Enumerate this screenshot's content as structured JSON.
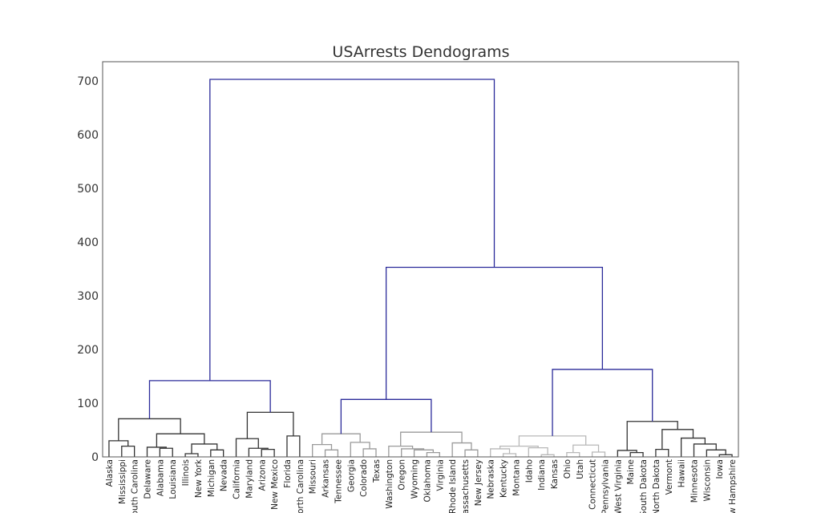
{
  "chart_data": {
    "type": "dendrogram",
    "title": "USArrests Dendograms",
    "xlabel": "",
    "ylabel": "",
    "ylim": [
      0,
      740
    ],
    "yticks": [
      0,
      100,
      200,
      300,
      400,
      500,
      600,
      700
    ],
    "grid": false,
    "legend": "none",
    "colors": {
      "root": "#2b2b9a",
      "cluster_1": "#333333",
      "cluster_2": "#9a9a9a",
      "cluster_3": "#b8b8b8",
      "cluster_4": "#333333",
      "frame": "#555555"
    },
    "leaves": [
      "Alaska",
      "Mississippi",
      "South Carolina",
      "Delaware",
      "Alabama",
      "Louisiana",
      "Illinois",
      "New York",
      "Michigan",
      "Nevada",
      "California",
      "Maryland",
      "Arizona",
      "New Mexico",
      "Florida",
      "North Carolina",
      "Missouri",
      "Arkansas",
      "Tennessee",
      "Georgia",
      "Colorado",
      "Texas",
      "Washington",
      "Oregon",
      "Wyoming",
      "Oklahoma",
      "Virginia",
      "Rhode Island",
      "Massachusetts",
      "New Jersey",
      "Nebraska",
      "Kentucky",
      "Montana",
      "Idaho",
      "Indiana",
      "Kansas",
      "Ohio",
      "Utah",
      "Connecticut",
      "Pennsylvania",
      "West Virginia",
      "Maine",
      "South Dakota",
      "North Dakota",
      "Vermont",
      "Hawaii",
      "Minnesota",
      "Wisconsin",
      "Iowa",
      "New Hampshire"
    ],
    "merges": [
      {
        "a": "L1",
        "b": "L2",
        "h": 20,
        "c": "cluster_1"
      },
      {
        "a": "L0",
        "b": "M0",
        "h": 30,
        "c": "cluster_1"
      },
      {
        "a": "L4",
        "b": "L5",
        "h": 16,
        "c": "cluster_1"
      },
      {
        "a": "L3",
        "b": "M2",
        "h": 18,
        "c": "cluster_1"
      },
      {
        "a": "L6",
        "b": "L7",
        "h": 6,
        "c": "cluster_1"
      },
      {
        "a": "L8",
        "b": "L9",
        "h": 13,
        "c": "cluster_1"
      },
      {
        "a": "M4",
        "b": "M5",
        "h": 24,
        "c": "cluster_1"
      },
      {
        "a": "M3",
        "b": "M6",
        "h": 43,
        "c": "cluster_1"
      },
      {
        "a": "M1",
        "b": "M7",
        "h": 71,
        "c": "cluster_1"
      },
      {
        "a": "L12",
        "b": "L13",
        "h": 14,
        "c": "cluster_1"
      },
      {
        "a": "L11",
        "b": "M9",
        "h": 16,
        "c": "cluster_1"
      },
      {
        "a": "L10",
        "b": "M10",
        "h": 34,
        "c": "cluster_1"
      },
      {
        "a": "L14",
        "b": "L15",
        "h": 39,
        "c": "cluster_1"
      },
      {
        "a": "M11",
        "b": "M12",
        "h": 83,
        "c": "cluster_1"
      },
      {
        "a": "M8",
        "b": "M13",
        "h": 142,
        "c": "root"
      },
      {
        "a": "L17",
        "b": "L18",
        "h": 13,
        "c": "cluster_2"
      },
      {
        "a": "L16",
        "b": "M15",
        "h": 23,
        "c": "cluster_2"
      },
      {
        "a": "L20",
        "b": "L21",
        "h": 15,
        "c": "cluster_2"
      },
      {
        "a": "L19",
        "b": "M17",
        "h": 27,
        "c": "cluster_2"
      },
      {
        "a": "M16",
        "b": "M18",
        "h": 43,
        "c": "cluster_2"
      },
      {
        "a": "L25",
        "b": "L26",
        "h": 8,
        "c": "cluster_2"
      },
      {
        "a": "L24",
        "b": "M20",
        "h": 13,
        "c": "cluster_2"
      },
      {
        "a": "L23",
        "b": "M21",
        "h": 15,
        "c": "cluster_2"
      },
      {
        "a": "L22",
        "b": "M22",
        "h": 20,
        "c": "cluster_2"
      },
      {
        "a": "L28",
        "b": "L29",
        "h": 13,
        "c": "cluster_2"
      },
      {
        "a": "L27",
        "b": "M24",
        "h": 26,
        "c": "cluster_2"
      },
      {
        "a": "M23",
        "b": "M25",
        "h": 46,
        "c": "cluster_2"
      },
      {
        "a": "M19",
        "b": "M26",
        "h": 107,
        "c": "root"
      },
      {
        "a": "L31",
        "b": "L32",
        "h": 6,
        "c": "cluster_3"
      },
      {
        "a": "L30",
        "b": "M28",
        "h": 15,
        "c": "cluster_3"
      },
      {
        "a": "L34",
        "b": "L35",
        "h": 4,
        "c": "cluster_3"
      },
      {
        "a": "L33",
        "b": "M30",
        "h": 17,
        "c": "cluster_3"
      },
      {
        "a": "M29",
        "b": "M31",
        "h": 20,
        "c": "cluster_3"
      },
      {
        "a": "L36",
        "b": "L37",
        "h": 8,
        "c": "cluster_3"
      },
      {
        "a": "L38",
        "b": "L39",
        "h": 9,
        "c": "cluster_3"
      },
      {
        "a": "M33",
        "b": "M34",
        "h": 22,
        "c": "cluster_3"
      },
      {
        "a": "M32",
        "b": "M35",
        "h": 39,
        "c": "cluster_3"
      },
      {
        "a": "L41",
        "b": "L42",
        "h": 8,
        "c": "cluster_4"
      },
      {
        "a": "L40",
        "b": "M37",
        "h": 12,
        "c": "cluster_4"
      },
      {
        "a": "L43",
        "b": "L44",
        "h": 14,
        "c": "cluster_4"
      },
      {
        "a": "L48",
        "b": "L49",
        "h": 4,
        "c": "cluster_4"
      },
      {
        "a": "L47",
        "b": "M40",
        "h": 13,
        "c": "cluster_4"
      },
      {
        "a": "L46",
        "b": "M41",
        "h": 24,
        "c": "cluster_4"
      },
      {
        "a": "L45",
        "b": "M42",
        "h": 35,
        "c": "cluster_4"
      },
      {
        "a": "M39",
        "b": "M43",
        "h": 51,
        "c": "cluster_4"
      },
      {
        "a": "M38",
        "b": "M44",
        "h": 66,
        "c": "cluster_4"
      },
      {
        "a": "M36",
        "b": "M45",
        "h": 163,
        "c": "root"
      },
      {
        "a": "M27",
        "b": "M46",
        "h": 353,
        "c": "root"
      },
      {
        "a": "M14",
        "b": "M47",
        "h": 703,
        "c": "root"
      }
    ]
  }
}
